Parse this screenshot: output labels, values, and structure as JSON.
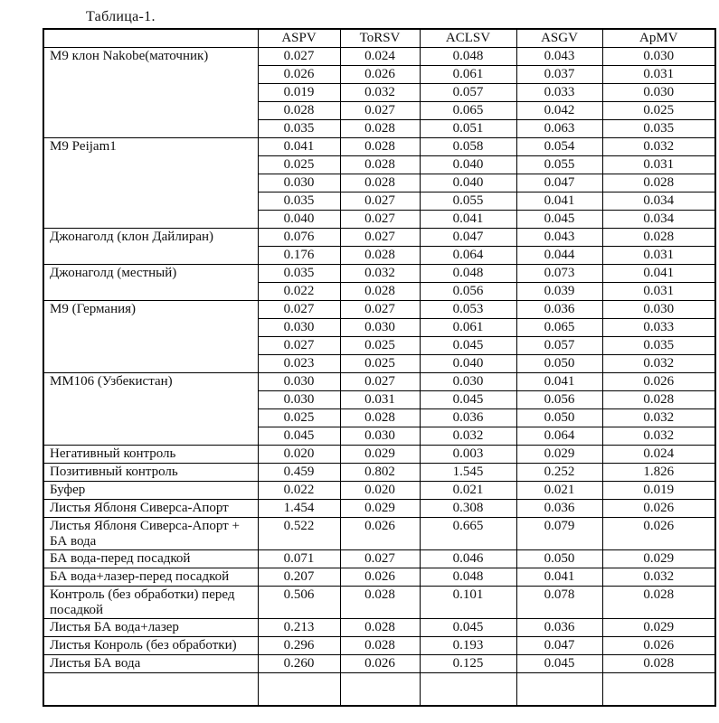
{
  "title": "Таблица-1.",
  "table": {
    "columns": [
      "",
      "ASPV",
      "ToRSV",
      "ACLSV",
      "ASGV",
      "ApMV"
    ],
    "groups": [
      {
        "label": "М9 клон Nakobe(маточник)",
        "rows": [
          [
            "0.027",
            "0.024",
            "0.048",
            "0.043",
            "0.030"
          ],
          [
            "0.026",
            "0.026",
            "0.061",
            "0.037",
            "0.031"
          ],
          [
            "0.019",
            "0.032",
            "0.057",
            "0.033",
            "0.030"
          ],
          [
            "0.028",
            "0.027",
            "0.065",
            "0.042",
            "0.025"
          ],
          [
            "0.035",
            "0.028",
            "0.051",
            "0.063",
            "0.035"
          ]
        ]
      },
      {
        "label": "М9 Peijam1",
        "rows": [
          [
            "0.041",
            "0.028",
            "0.058",
            "0.054",
            "0.032"
          ],
          [
            "0.025",
            "0.028",
            "0.040",
            "0.055",
            "0.031"
          ],
          [
            "0.030",
            "0.028",
            "0.040",
            "0.047",
            "0.028"
          ],
          [
            "0.035",
            "0.027",
            "0.055",
            "0.041",
            "0.034"
          ],
          [
            "0.040",
            "0.027",
            "0.041",
            "0.045",
            "0.034"
          ]
        ]
      },
      {
        "label": "Джонаголд (клон Дайлиран)",
        "rows": [
          [
            "0.076",
            "0.027",
            "0.047",
            "0.043",
            "0.028"
          ],
          [
            "0.176",
            "0.028",
            "0.064",
            "0.044",
            "0.031"
          ]
        ]
      },
      {
        "label": "Джонаголд (местный)",
        "rows": [
          [
            "0.035",
            "0.032",
            "0.048",
            "0.073",
            "0.041"
          ],
          [
            "0.022",
            "0.028",
            "0.056",
            "0.039",
            "0.031"
          ]
        ]
      },
      {
        "label": "М9 (Германия)",
        "rows": [
          [
            "0.027",
            "0.027",
            "0.053",
            "0.036",
            "0.030"
          ],
          [
            "0.030",
            "0.030",
            "0.061",
            "0.065",
            "0.033"
          ],
          [
            "0.027",
            "0.025",
            "0.045",
            "0.057",
            "0.035"
          ],
          [
            "0.023",
            "0.025",
            "0.040",
            "0.050",
            "0.032"
          ]
        ]
      },
      {
        "label": "ММ106 (Узбекистан)",
        "rows": [
          [
            "0.030",
            "0.027",
            "0.030",
            "0.041",
            "0.026"
          ],
          [
            "0.030",
            "0.031",
            "0.045",
            "0.056",
            "0.028"
          ],
          [
            "0.025",
            "0.028",
            "0.036",
            "0.050",
            "0.032"
          ],
          [
            "0.045",
            "0.030",
            "0.032",
            "0.064",
            "0.032"
          ]
        ]
      },
      {
        "label": "Негативный контроль",
        "rows": [
          [
            "0.020",
            "0.029",
            "0.003",
            "0.029",
            "0.024"
          ]
        ]
      },
      {
        "label": "Позитивный контроль",
        "rows": [
          [
            "0.459",
            "0.802",
            "1.545",
            "0.252",
            "1.826"
          ]
        ]
      },
      {
        "label": "Буфер",
        "rows": [
          [
            "0.022",
            "0.020",
            "0.021",
            "0.021",
            "0.019"
          ]
        ]
      },
      {
        "label": "Листья Яблоня Сиверса-Апорт",
        "rows": [
          [
            "1.454",
            "0.029",
            "0.308",
            "0.036",
            "0.026"
          ]
        ]
      },
      {
        "label": "Листья Яблоня Сиверса-Апорт + БА вода",
        "rows": [
          [
            "0.522",
            "0.026",
            "0.665",
            "0.079",
            "0.026"
          ]
        ]
      },
      {
        "label": "БА вода-перед посадкой",
        "rows": [
          [
            "0.071",
            "0.027",
            "0.046",
            "0.050",
            "0.029"
          ]
        ]
      },
      {
        "label": "БА вода+лазер-перед посадкой",
        "rows": [
          [
            "0.207",
            "0.026",
            "0.048",
            "0.041",
            "0.032"
          ]
        ]
      },
      {
        "label": "Контроль (без обработки) перед посадкой",
        "rows": [
          [
            "0.506",
            "0.028",
            "0.101",
            "0.078",
            "0.028"
          ]
        ]
      },
      {
        "label": "Листья БА вода+лазер",
        "rows": [
          [
            "0.213",
            "0.028",
            "0.045",
            "0.036",
            "0.029"
          ]
        ]
      },
      {
        "label": "Листья Конроль (без обработки)",
        "rows": [
          [
            "0.296",
            "0.028",
            "0.193",
            "0.047",
            "0.026"
          ]
        ]
      },
      {
        "label": "Листья БА вода",
        "rows": [
          [
            "0.260",
            "0.026",
            "0.125",
            "0.045",
            "0.028"
          ]
        ]
      },
      {
        "label": "",
        "partial": true,
        "rows": [
          [
            "",
            "",
            "",
            "",
            ""
          ]
        ]
      }
    ]
  }
}
